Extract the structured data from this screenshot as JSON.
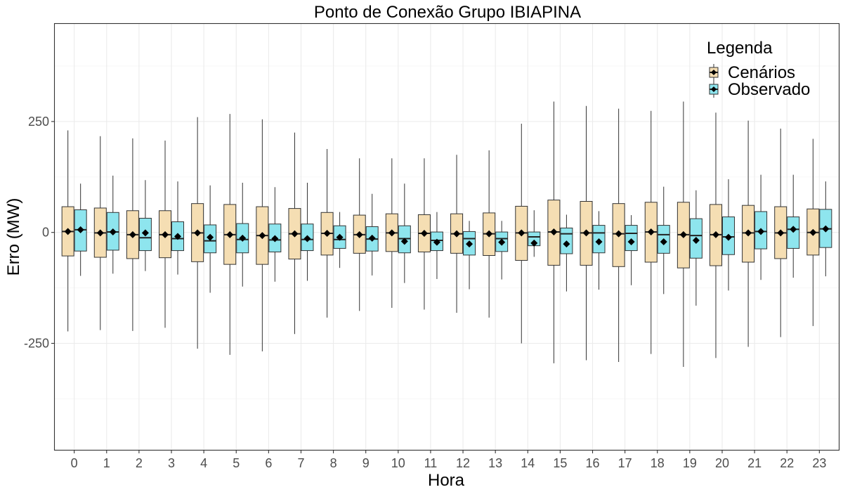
{
  "chart_data": {
    "type": "boxplot",
    "title": "Ponto de Conexão Grupo IBIAPINA",
    "xlabel": "Hora",
    "ylabel": "Erro (MW)",
    "ylim": [
      -490,
      470
    ],
    "y_ticks": [
      -250,
      0,
      250
    ],
    "y_tick_labels": [
      "-250",
      "0",
      "250"
    ],
    "y_minor_ticks": [
      -375,
      -125,
      125,
      375
    ],
    "grid": true,
    "categories": [
      "0",
      "1",
      "2",
      "3",
      "4",
      "5",
      "6",
      "7",
      "8",
      "9",
      "10",
      "11",
      "12",
      "13",
      "14",
      "15",
      "16",
      "17",
      "18",
      "19",
      "20",
      "21",
      "22",
      "23"
    ],
    "legend": {
      "title": "Legenda",
      "position": "top-right",
      "entries": [
        "Cenários",
        "Observado"
      ]
    },
    "series": [
      {
        "name": "Cenários",
        "color": "#F5DEB3",
        "whisker_low": [
          -223,
          -220,
          -222,
          -215,
          -262,
          -276,
          -268,
          -229,
          -192,
          -177,
          -170,
          -174,
          -181,
          -192,
          -250,
          -295,
          -288,
          -292,
          -274,
          -303,
          -283,
          -258,
          -236,
          -211
        ],
        "q1": [
          -53,
          -56,
          -59,
          -57,
          -66,
          -72,
          -72,
          -60,
          -51,
          -47,
          -43,
          -44,
          -47,
          -52,
          -63,
          -74,
          -74,
          -77,
          -67,
          -80,
          -75,
          -67,
          -59,
          -51
        ],
        "median": [
          2,
          -1,
          -5,
          -5,
          -1,
          -5,
          -7,
          -3,
          -2,
          -5,
          -1,
          -2,
          -3,
          -3,
          -1,
          1,
          -1,
          -3,
          1,
          -5,
          -5,
          -1,
          -1,
          0
        ],
        "q3": [
          58,
          55,
          49,
          49,
          65,
          63,
          58,
          54,
          45,
          39,
          42,
          40,
          42,
          44,
          59,
          73,
          70,
          65,
          68,
          68,
          63,
          61,
          58,
          53
        ],
        "whisker_high": [
          230,
          217,
          212,
          207,
          260,
          267,
          255,
          225,
          188,
          167,
          167,
          167,
          175,
          185,
          245,
          295,
          285,
          279,
          274,
          295,
          270,
          252,
          234,
          211
        ],
        "mean": [
          2,
          -1,
          -5,
          -5,
          -1,
          -5,
          -7,
          -3,
          -2,
          -5,
          -1,
          -2,
          -3,
          -3,
          -1,
          1,
          -1,
          -3,
          1,
          -5,
          -5,
          -1,
          -1,
          0
        ]
      },
      {
        "name": "Observado",
        "color": "#8EE5EE",
        "whisker_low": [
          -98,
          -93,
          -87,
          -95,
          -136,
          -122,
          -111,
          -109,
          -80,
          -97,
          -114,
          -105,
          -128,
          -106,
          -55,
          -133,
          -129,
          -119,
          -139,
          -165,
          -131,
          -107,
          -102,
          -99
        ],
        "q1": [
          -42,
          -40,
          -41,
          -41,
          -46,
          -46,
          -44,
          -41,
          -36,
          -42,
          -46,
          -41,
          -51,
          -43,
          -30,
          -48,
          -46,
          -41,
          -47,
          -58,
          -50,
          -37,
          -36,
          -34
        ],
        "median": [
          6,
          1,
          -12,
          -14,
          -19,
          -16,
          -17,
          -16,
          -16,
          -15,
          -14,
          -18,
          -14,
          -14,
          -10,
          -3,
          -1,
          -2,
          -5,
          -7,
          -10,
          2,
          7,
          8
        ],
        "q3": [
          51,
          45,
          32,
          24,
          17,
          20,
          19,
          19,
          15,
          13,
          15,
          1,
          2,
          1,
          1,
          10,
          16,
          16,
          16,
          31,
          35,
          47,
          35,
          52
        ],
        "whisker_high": [
          110,
          128,
          118,
          115,
          106,
          112,
          102,
          112,
          46,
          87,
          110,
          46,
          26,
          26,
          50,
          40,
          48,
          39,
          103,
          95,
          120,
          130,
          130,
          115
        ],
        "mean": [
          6,
          1,
          -1,
          -9,
          -11,
          -13,
          -14,
          -14,
          -11,
          -13,
          -20,
          -22,
          -26,
          -22,
          -24,
          -26,
          -21,
          -21,
          -21,
          -18,
          -11,
          2,
          7,
          8
        ]
      }
    ]
  }
}
